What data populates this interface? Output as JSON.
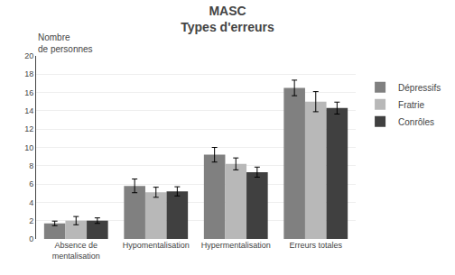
{
  "chart_data": {
    "type": "bar",
    "title": "MASC",
    "subtitle": "Types d'erreurs",
    "ylabel": "Nombre\nde personnes",
    "categories": [
      "Absence de\nmentalisation",
      "Hypomentalisation",
      "Hypermentalisation",
      "Erreurs totales"
    ],
    "series": [
      {
        "name": "Dépressifs",
        "color": "#808080",
        "values": [
          1.7,
          5.8,
          9.2,
          16.5
        ],
        "errors": [
          0.25,
          0.75,
          0.8,
          0.85
        ]
      },
      {
        "name": "Fratrie",
        "color": "#b8b8b8",
        "values": [
          2.0,
          5.1,
          8.2,
          15.0
        ],
        "errors": [
          0.45,
          0.55,
          0.65,
          1.1
        ]
      },
      {
        "name": "Conrôles",
        "color": "#404040",
        "values": [
          2.0,
          5.2,
          7.3,
          14.3
        ],
        "errors": [
          0.3,
          0.5,
          0.55,
          0.65
        ]
      }
    ],
    "ylim": [
      0,
      20
    ],
    "yticks": [
      0,
      2,
      4,
      6,
      8,
      10,
      12,
      14,
      16,
      18,
      20
    ],
    "grid": true,
    "legend": "right"
  }
}
